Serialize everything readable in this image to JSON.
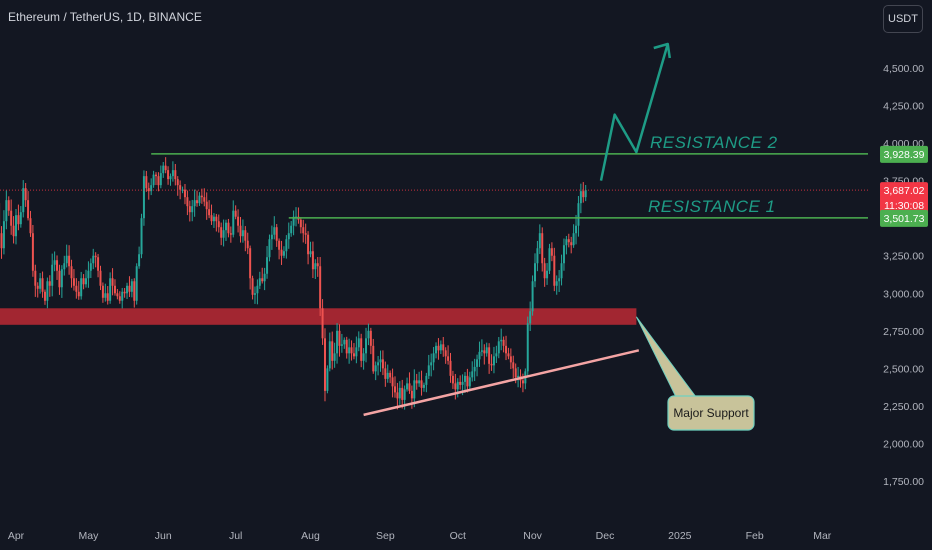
{
  "header": {
    "symbol_title": "Ethereum / TetherUS, 1D, BINANCE",
    "currency": "USDT"
  },
  "colors": {
    "background": "#131722",
    "up": "#26a69a",
    "down": "#ef5350",
    "axis_text": "#b2b5be",
    "resistance": "#4caf50",
    "support_zone": "#b22833",
    "trendline": "#f4a4a4",
    "arrow": "#1e9c86",
    "current_price": "#f23645",
    "callout_bg": "#c8c39a"
  },
  "chart_data": {
    "type": "candlestick",
    "title": "Ethereum / TetherUS, 1D, BINANCE",
    "x_ticks": [
      "Apr",
      "May",
      "Jun",
      "Jul",
      "Aug",
      "Sep",
      "Oct",
      "Nov",
      "Dec",
      "2025",
      "Feb",
      "Mar"
    ],
    "y_ticks": [
      "4,500.00",
      "4,250.00",
      "4,000.00",
      "3,750.00",
      "3,250.00",
      "3,000.00",
      "2,750.00",
      "2,500.00",
      "2,250.00",
      "2,000.00",
      "1,750.00"
    ],
    "ylim": [
      1590,
      4720
    ],
    "start_date": "2024-03-17",
    "closes": [
      3600,
      3580,
      3460,
      3540,
      3500,
      3560,
      3490,
      3600,
      3400,
      3300,
      3480,
      3620,
      3550,
      3450,
      3380,
      3520,
      3460,
      3540,
      3700,
      3620,
      3500,
      3400,
      3150,
      3050,
      3030,
      3100,
      3010,
      2950,
      3080,
      3050,
      3190,
      3220,
      3150,
      3040,
      3160,
      3200,
      3250,
      3180,
      3100,
      3050,
      3010,
      2980,
      3100,
      3060,
      3100,
      3150,
      3200,
      3250,
      3240,
      3150,
      3050,
      2970,
      3000,
      2950,
      3100,
      3050,
      3000,
      2980,
      2950,
      3010,
      3000,
      3050,
      3010,
      3080,
      2950,
      3180,
      3260,
      3500,
      3780,
      3700,
      3680,
      3720,
      3790,
      3780,
      3720,
      3800,
      3850,
      3820,
      3760,
      3780,
      3820,
      3760,
      3720,
      3690,
      3690,
      3640,
      3580,
      3540,
      3580,
      3620,
      3600,
      3650,
      3640,
      3610,
      3560,
      3520,
      3480,
      3510,
      3480,
      3440,
      3370,
      3420,
      3470,
      3400,
      3390,
      3550,
      3510,
      3450,
      3380,
      3420,
      3350,
      3300,
      3100,
      2990,
      3000,
      3050,
      3100,
      3080,
      3130,
      3240,
      3360,
      3390,
      3440,
      3350,
      3290,
      3250,
      3280,
      3360,
      3400,
      3450,
      3510,
      3510,
      3490,
      3440,
      3400,
      3390,
      3260,
      3280,
      3160,
      3200,
      3180,
      2900,
      2700,
      2350,
      2500,
      2680,
      2550,
      2600,
      2750,
      2650,
      2660,
      2690,
      2600,
      2640,
      2600,
      2580,
      2640,
      2700,
      2550,
      2600,
      2700,
      2750,
      2650,
      2480,
      2520,
      2540,
      2560,
      2500,
      2430,
      2470,
      2440,
      2380,
      2340,
      2300,
      2370,
      2290,
      2360,
      2400,
      2350,
      2300,
      2420,
      2400,
      2420,
      2370,
      2390,
      2450,
      2520,
      2540,
      2600,
      2650,
      2620,
      2660,
      2620,
      2580,
      2550,
      2450,
      2400,
      2360,
      2410,
      2390,
      2410,
      2450,
      2380,
      2440,
      2480,
      2510,
      2560,
      2610,
      2620,
      2600,
      2640,
      2530,
      2520,
      2580,
      2600,
      2680,
      2690,
      2650,
      2600,
      2580,
      2540,
      2500,
      2440,
      2450,
      2420,
      2400,
      2480,
      2800,
      2880,
      3080,
      3200,
      3300,
      3400,
      3200,
      3100,
      3150,
      3300,
      3250,
      3050,
      3080,
      3100,
      3200,
      3320,
      3360,
      3340,
      3320,
      3400,
      3450,
      3600,
      3680,
      3640,
      3687.02
    ]
  },
  "annotations": {
    "resistance_1": {
      "label": "RESISTANCE 1",
      "price": "3,501.73",
      "price_value": 3501.73,
      "from_date": "2024-07-23"
    },
    "resistance_2": {
      "label": "RESISTANCE 2",
      "price": "3,928.39",
      "price_value": 3928.39,
      "from_date": "2024-05-27"
    },
    "support_zone": {
      "low": 2790,
      "high": 2900
    },
    "support_trendline": {
      "from_date": "2024-08-23",
      "from_price": 2190,
      "to_date": "2024-12-15",
      "to_price": 2620
    },
    "callout": {
      "label": "Major Support"
    },
    "current_price": {
      "price": "3,687.02",
      "countdown": "11:30:08",
      "price_value": 3687.02
    },
    "projection_arrow": [
      {
        "date": "2024-12-05",
        "price": 4190
      },
      {
        "date": "2024-12-14",
        "price": 3940
      },
      {
        "date": "2024-12-27",
        "price": 4660
      }
    ]
  }
}
